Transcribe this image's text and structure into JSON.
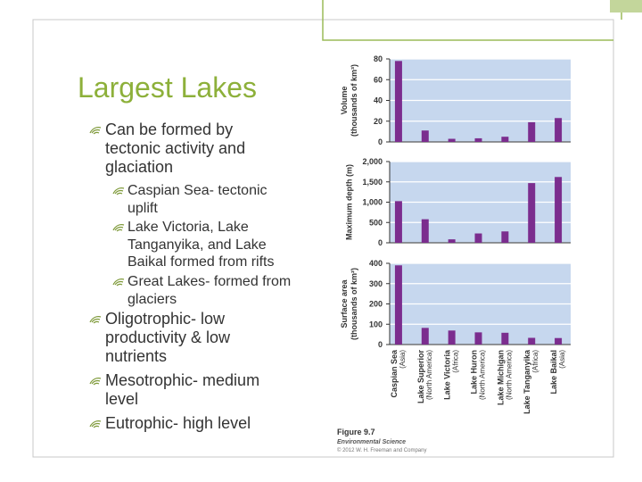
{
  "slide": {
    "title": "Largest Lakes",
    "bullets": [
      {
        "text": "Can be formed by tectonic activity and glaciation",
        "sub": [
          "Caspian Sea- tectonic uplift",
          "Lake Victoria, Lake Tanganyika, and Lake Baikal formed from rifts",
          "Great Lakes- formed from glaciers"
        ]
      },
      {
        "text": "Oligotrophic- low productivity & low nutrients"
      },
      {
        "text": "Mesotrophic- medium level"
      },
      {
        "text": "Eutrophic- high level"
      }
    ]
  },
  "figure": {
    "label": "Figure 9.7",
    "source": "Environmental Science",
    "copyright": "© 2012 W. H. Freeman and Company"
  },
  "chart_data": [
    {
      "type": "bar",
      "ylabel": [
        "Volume",
        "(thousands of km³)"
      ],
      "color": "#7b2d8e",
      "grid": true,
      "values": [
        78,
        11,
        3,
        3.5,
        5,
        19,
        23
      ],
      "ylim": [
        0,
        80
      ],
      "yticks": [
        0,
        20,
        40,
        60,
        80
      ]
    },
    {
      "type": "bar",
      "ylabel": [
        "Maximum depth (m)"
      ],
      "color": "#7b2d8e",
      "grid": true,
      "values": [
        1025,
        580,
        85,
        230,
        280,
        1470,
        1620
      ],
      "ylim": [
        0,
        2000
      ],
      "yticks": [
        0,
        500,
        {
          "value": 1000,
          "label": "1,000"
        },
        {
          "value": 1500,
          "label": "1,500"
        },
        {
          "value": 2000,
          "label": "2,000"
        }
      ]
    },
    {
      "type": "bar",
      "ylabel": [
        "Surface area",
        "(thousands of km²)"
      ],
      "color": "#7b2d8e",
      "grid": true,
      "categories": [
        "Caspian Sea",
        "Lake Superior",
        "Lake Victoria",
        "Lake Huron",
        "Lake Michigan",
        "Lake Tanganyika",
        "Lake Baikal"
      ],
      "regions": [
        "(Asia)",
        "(North America)",
        "(Africa)",
        "(North America)",
        "(North America)",
        "(Africa)",
        "(Asia)"
      ],
      "values": [
        390,
        82,
        69,
        60,
        58,
        33,
        32
      ],
      "ylim": [
        0,
        400
      ],
      "yticks": [
        0,
        100,
        200,
        300,
        400
      ]
    }
  ]
}
